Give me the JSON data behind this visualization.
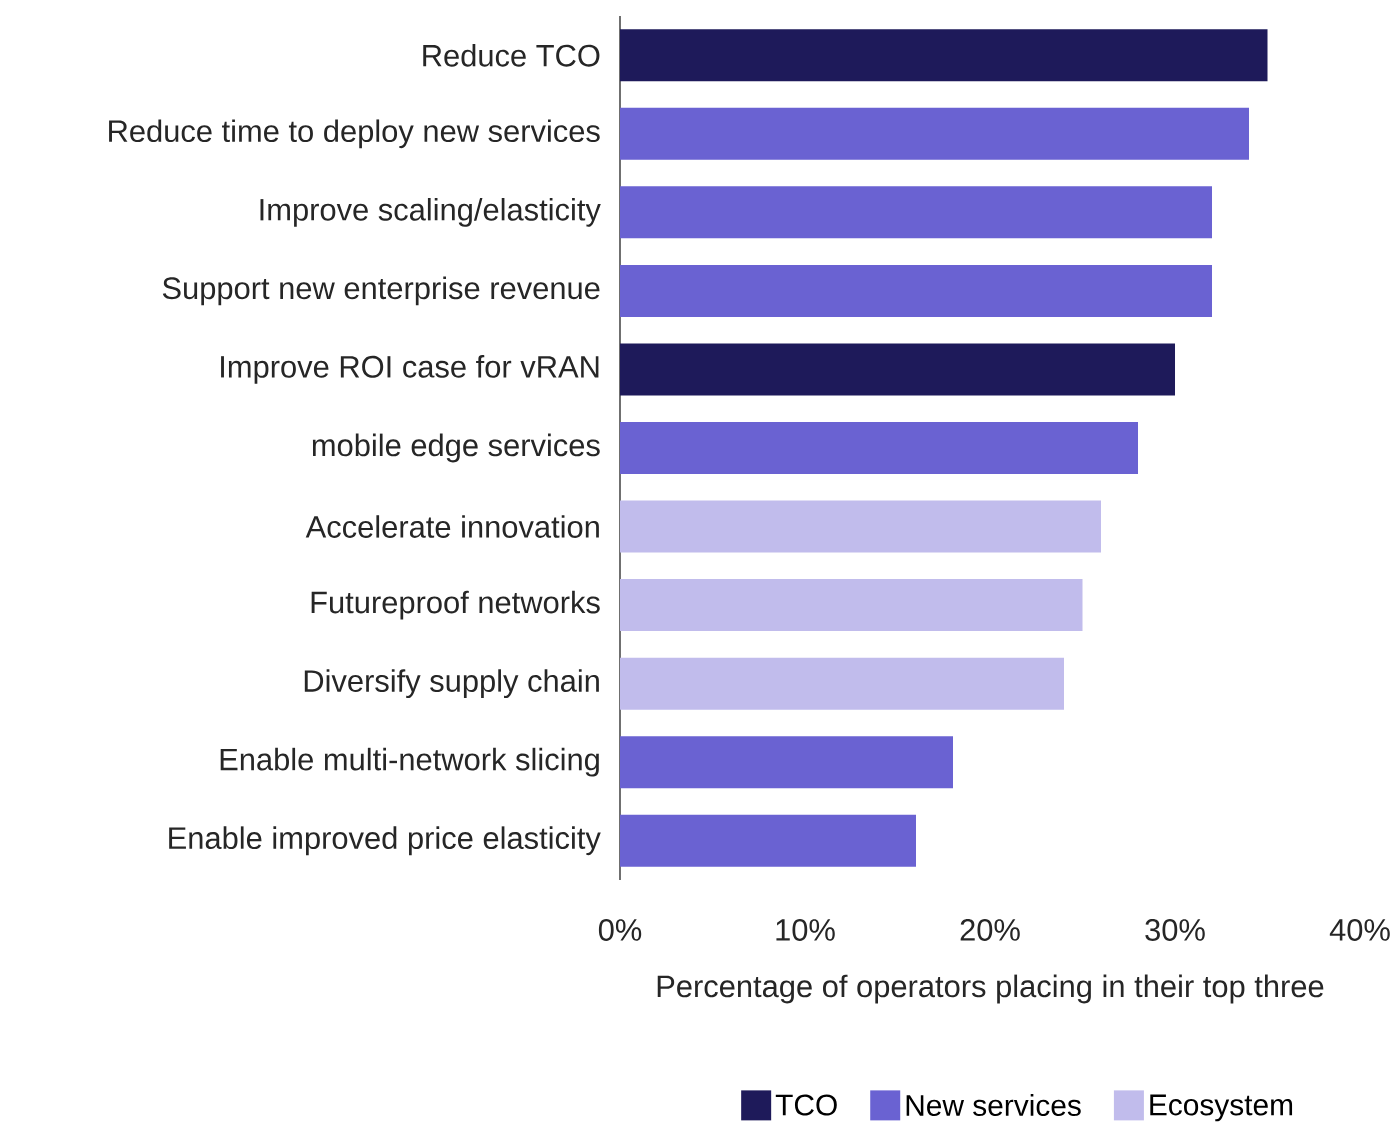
{
  "chart_data": {
    "type": "bar",
    "orientation": "horizontal",
    "categories": [
      "Reduce TCO",
      "Reduce time to deploy new services",
      "Improve scaling/elasticity",
      "Support new enterprise revenue",
      "Improve ROI case for vRAN",
      "mobile edge services",
      "Accelerate innovation",
      "Futureproof networks",
      "Diversify supply chain",
      "Enable multi-network slicing",
      "Enable improved price elasticity"
    ],
    "series": [
      {
        "name": "TCO",
        "color": "#1e1a5a",
        "values": [
          35,
          null,
          null,
          null,
          30,
          null,
          null,
          null,
          null,
          null,
          null
        ]
      },
      {
        "name": "New services",
        "color": "#6a62d2",
        "values": [
          null,
          34,
          32,
          32,
          null,
          28,
          null,
          null,
          null,
          18,
          16
        ]
      },
      {
        "name": "Ecosystem",
        "color": "#c1bcec",
        "values": [
          null,
          null,
          null,
          null,
          null,
          null,
          26,
          25,
          24,
          null,
          null
        ]
      }
    ],
    "xlim": [
      0,
      40
    ],
    "xticks": [
      {
        "value": 0,
        "label": "0%"
      },
      {
        "value": 10,
        "label": "10%"
      },
      {
        "value": 20,
        "label": "20%"
      },
      {
        "value": 30,
        "label": "30%"
      },
      {
        "value": 40,
        "label": "40%"
      }
    ],
    "xlabel": "Percentage of operators placing in their top three",
    "grid": false,
    "legend": "bottom"
  }
}
